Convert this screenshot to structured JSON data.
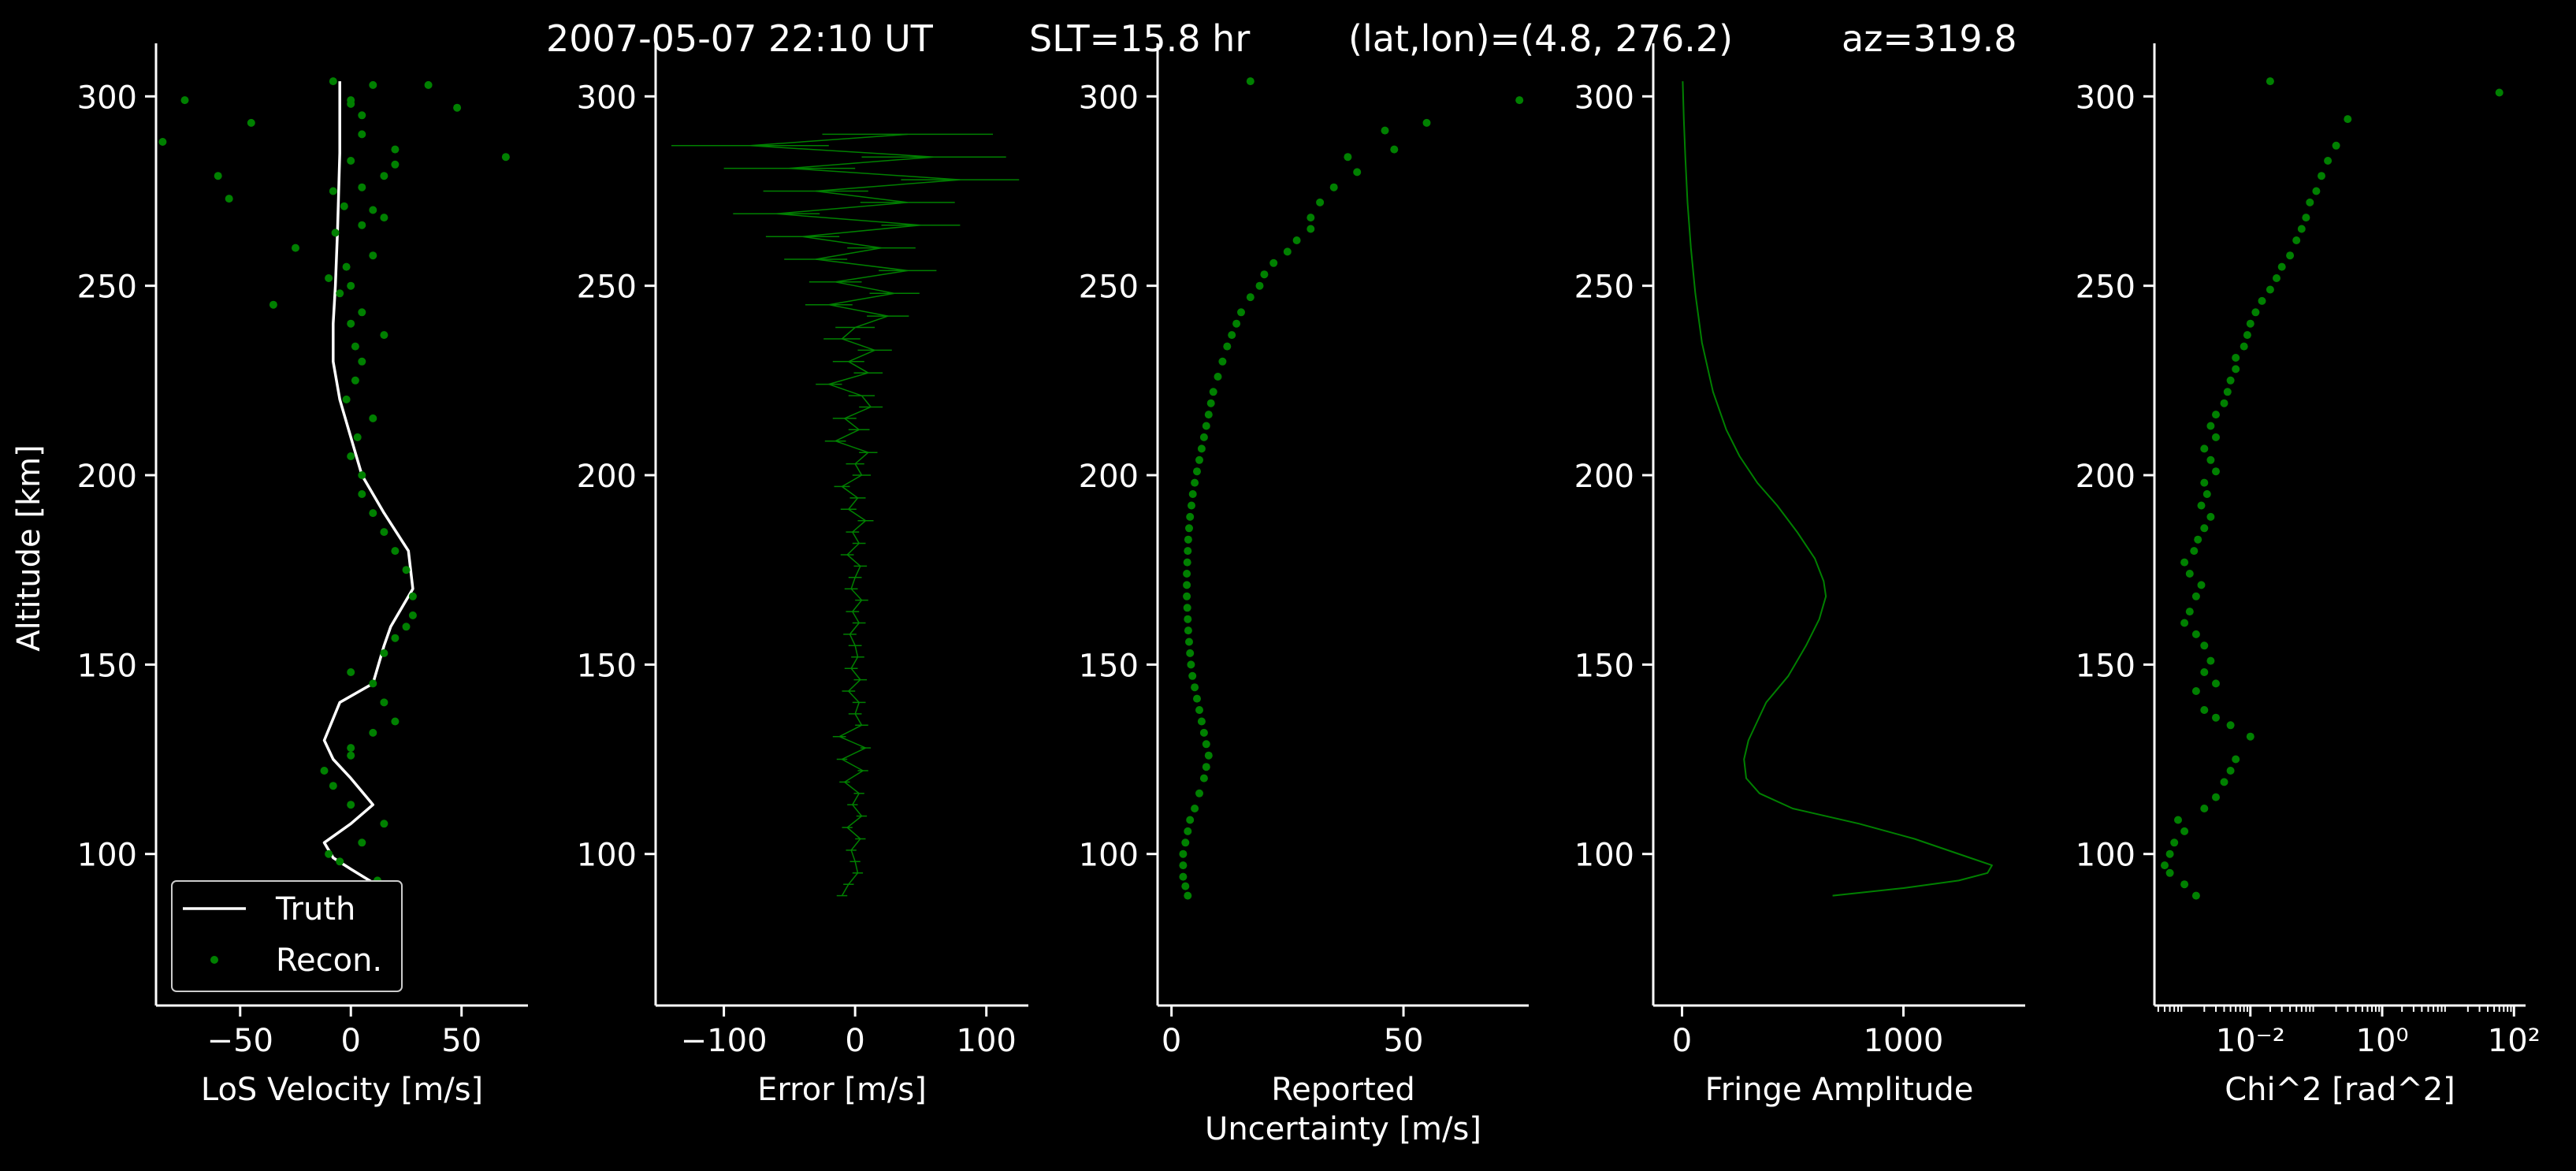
{
  "suptitle": {
    "date": "2007-05-07 22:10 UT",
    "slt": "SLT=15.8 hr",
    "latlon": "(lat,lon)=(4.8, 276.2)",
    "az": "az=319.8"
  },
  "colors": {
    "background": "#000000",
    "truth": "#ffffff",
    "recon": "#008000",
    "axis": "#ffffff"
  },
  "chart_data": [
    {
      "type": "line",
      "xlabel": "LoS Velocity [m/s]",
      "ylabel": "Altitude [km]",
      "xlim": [
        -88,
        80
      ],
      "ylim": [
        60,
        314
      ],
      "xticks": [
        -50,
        0,
        50
      ],
      "xtick_labels": [
        "−50",
        "0",
        "50"
      ],
      "yticks": [
        100,
        150,
        200,
        250,
        300
      ],
      "ytick_labels": [
        "100",
        "150",
        "200",
        "250",
        "300"
      ],
      "grid": false,
      "legend": {
        "placement": "lower-left",
        "entries": [
          "Truth",
          "Recon."
        ]
      },
      "series": [
        {
          "name": "Truth",
          "style": "line",
          "x": [
            14,
            0,
            -8,
            -12,
            0,
            10,
            0,
            -8,
            -12,
            -5,
            10,
            15,
            18,
            28,
            26,
            15,
            5,
            0,
            -5,
            -8,
            -8,
            -7,
            -6,
            -5,
            -5
          ],
          "y": [
            91,
            96,
            99,
            103,
            108,
            113,
            120,
            125,
            130,
            140,
            145,
            155,
            160,
            170,
            180,
            190,
            200,
            210,
            220,
            230,
            240,
            250,
            265,
            285,
            304
          ]
        },
        {
          "name": "Recon.",
          "style": "scatter",
          "x": [
            12,
            -5,
            -10,
            5,
            15,
            0,
            -8,
            -12,
            0,
            0,
            10,
            20,
            15,
            10,
            0,
            15,
            20,
            25,
            28,
            28,
            25,
            20,
            15,
            10,
            5,
            5,
            0,
            3,
            10,
            -2,
            2,
            5,
            2,
            15,
            0,
            5,
            -5,
            0,
            -10,
            -2,
            -35,
            10,
            -25,
            -7,
            5,
            15,
            10,
            -3,
            -8,
            -55,
            -60,
            5,
            20,
            15,
            0,
            20,
            5,
            -85,
            -45,
            -75,
            5,
            0,
            70,
            48,
            35,
            10,
            0,
            -8
          ],
          "y": [
            93,
            98,
            100,
            103,
            108,
            113,
            118,
            122,
            126,
            128,
            132,
            135,
            140,
            145,
            148,
            153,
            157,
            160,
            163,
            168,
            175,
            180,
            185,
            190,
            195,
            200,
            205,
            210,
            215,
            220,
            225,
            230,
            234,
            237,
            240,
            243,
            248,
            250,
            252,
            255,
            245,
            258,
            260,
            264,
            266,
            268,
            270,
            271,
            275,
            273,
            279,
            276,
            282,
            279,
            283,
            286,
            290,
            288,
            293,
            299,
            295,
            298,
            284,
            297,
            303,
            303,
            299,
            304
          ]
        }
      ]
    },
    {
      "type": "line",
      "xlabel": "Error [m/s]",
      "xlim": [
        -152,
        132
      ],
      "ylim": [
        60,
        314
      ],
      "xticks": [
        -100,
        0,
        100
      ],
      "xtick_labels": [
        "−100",
        "0",
        "100"
      ],
      "yticks": [
        100,
        150,
        200,
        250,
        300
      ],
      "ytick_labels": [
        "100",
        "150",
        "200",
        "250",
        "300"
      ],
      "grid": false,
      "series": [
        {
          "name": "",
          "style": "errorbar-line",
          "x": [
            -10,
            -5,
            2,
            0,
            -3,
            4,
            -6,
            5,
            -2,
            3,
            -8,
            6,
            -10,
            8,
            -12,
            5,
            0,
            3,
            -5,
            4,
            -3,
            2,
            0,
            -4,
            3,
            -2,
            5,
            -3,
            0,
            4,
            -6,
            3,
            -2,
            8,
            -5,
            2,
            -10,
            5,
            0,
            10,
            -15,
            3,
            -8,
            12,
            5,
            -20,
            10,
            -5,
            15,
            -10,
            0,
            25,
            -20,
            30,
            -15,
            40,
            -30,
            20,
            -40,
            50,
            -60,
            40,
            -30,
            80,
            -50,
            60,
            -80,
            40
          ],
          "y": [
            89,
            92,
            95,
            98,
            101,
            104,
            107,
            110,
            113,
            116,
            119,
            122,
            125,
            128,
            131,
            134,
            137,
            140,
            143,
            146,
            149,
            152,
            155,
            158,
            161,
            164,
            167,
            170,
            173,
            176,
            179,
            182,
            185,
            188,
            191,
            194,
            197,
            200,
            203,
            206,
            209,
            212,
            215,
            218,
            221,
            224,
            227,
            230,
            233,
            236,
            239,
            242,
            245,
            248,
            251,
            254,
            257,
            260,
            263,
            266,
            269,
            272,
            275,
            278,
            281,
            284,
            287,
            290
          ],
          "err": [
            4,
            4,
            4,
            4,
            4,
            4,
            4,
            4,
            4,
            4,
            4,
            4,
            4,
            4,
            5,
            5,
            5,
            5,
            5,
            5,
            5,
            5,
            5,
            5,
            5,
            5,
            5,
            5,
            5,
            5,
            5,
            5,
            5,
            6,
            6,
            6,
            6,
            7,
            7,
            7,
            8,
            8,
            9,
            9,
            10,
            10,
            11,
            12,
            13,
            14,
            15,
            16,
            18,
            19,
            20,
            22,
            24,
            26,
            28,
            30,
            33,
            36,
            40,
            45,
            50,
            55,
            60,
            65
          ]
        }
      ]
    },
    {
      "type": "scatter",
      "xlabel": "Reported\nUncertainty [m/s]",
      "xlim": [
        -3,
        77
      ],
      "ylim": [
        60,
        314
      ],
      "xticks": [
        0,
        50
      ],
      "xtick_labels": [
        "0",
        "50"
      ],
      "yticks": [
        100,
        150,
        200,
        250,
        300
      ],
      "ytick_labels": [
        "100",
        "150",
        "200",
        "250",
        "300"
      ],
      "grid": false,
      "series": [
        {
          "name": "",
          "style": "scatter",
          "x": [
            3.5,
            3,
            2.5,
            2.5,
            2.5,
            3,
            3.5,
            4,
            5,
            6,
            7,
            7.5,
            8,
            7.5,
            7,
            6.5,
            6,
            5.5,
            5,
            4.5,
            4.2,
            4,
            3.8,
            3.6,
            3.5,
            3.4,
            3.3,
            3.3,
            3.3,
            3.4,
            3.5,
            3.6,
            3.8,
            4,
            4.3,
            4.6,
            5,
            5.5,
            6,
            6.5,
            7,
            7.5,
            8,
            8.5,
            9,
            10,
            11,
            12,
            13,
            14,
            15,
            17,
            19,
            20,
            22,
            25,
            27,
            30,
            30,
            32,
            35,
            40,
            38,
            48,
            46,
            55,
            17,
            75
          ],
          "y": [
            89,
            91.5,
            94,
            97,
            100,
            103,
            106,
            109,
            112,
            116,
            120,
            123,
            126,
            129,
            132,
            135,
            138,
            141,
            144,
            147,
            150,
            153,
            156,
            159,
            162,
            165,
            168,
            171,
            174,
            177,
            180,
            183,
            186,
            189,
            192,
            195,
            198,
            201,
            204,
            207,
            210,
            213,
            216,
            219,
            222,
            226,
            230,
            234,
            237,
            240,
            243,
            247,
            250,
            253,
            256,
            259,
            262,
            265,
            268,
            272,
            276,
            280,
            284,
            286,
            291,
            293,
            304,
            299
          ]
        }
      ]
    },
    {
      "type": "line",
      "xlabel": "Fringe Amplitude",
      "xlim": [
        -130,
        1550
      ],
      "ylim": [
        60,
        314
      ],
      "xticks": [
        0,
        1000
      ],
      "xtick_labels": [
        "0",
        "1000"
      ],
      "yticks": [
        100,
        150,
        200,
        250,
        300
      ],
      "ytick_labels": [
        "100",
        "150",
        "200",
        "250",
        "300"
      ],
      "grid": false,
      "series": [
        {
          "name": "",
          "style": "line",
          "x": [
            680,
            1000,
            1250,
            1380,
            1400,
            1300,
            1050,
            800,
            500,
            350,
            290,
            280,
            300,
            340,
            380,
            480,
            560,
            620,
            650,
            640,
            600,
            520,
            430,
            340,
            260,
            200,
            140,
            90,
            60,
            40,
            25,
            15,
            8,
            3
          ],
          "y": [
            89,
            91,
            93,
            95,
            97,
            99,
            104,
            108,
            112,
            116,
            120,
            125,
            130,
            135,
            140,
            147,
            155,
            162,
            168,
            172,
            178,
            185,
            192,
            198,
            205,
            212,
            222,
            235,
            248,
            260,
            272,
            284,
            294,
            304
          ]
        }
      ]
    },
    {
      "type": "scatter",
      "xlabel": "Chi^2 [rad^2]",
      "xscale": "log",
      "xlim": [
        0.00035,
        150
      ],
      "ylim": [
        60,
        314
      ],
      "xticks": [
        0.01,
        1,
        100
      ],
      "xtick_labels": [
        "10⁻²",
        "10⁰",
        "10²"
      ],
      "yticks": [
        100,
        150,
        200,
        250,
        300
      ],
      "ytick_labels": [
        "100",
        "150",
        "200",
        "250",
        "300"
      ],
      "grid": false,
      "series": [
        {
          "name": "",
          "style": "scatter",
          "x": [
            0.0015,
            0.001,
            0.0006,
            0.0005,
            0.0006,
            0.0007,
            0.001,
            0.0008,
            0.002,
            0.003,
            0.004,
            0.005,
            0.006,
            0.01,
            0.005,
            0.003,
            0.002,
            0.0015,
            0.003,
            0.002,
            0.0025,
            0.002,
            0.0015,
            0.001,
            0.0012,
            0.0015,
            0.0018,
            0.0012,
            0.001,
            0.0014,
            0.0016,
            0.002,
            0.0025,
            0.0018,
            0.0022,
            0.002,
            0.003,
            0.0025,
            0.002,
            0.003,
            0.0025,
            0.003,
            0.004,
            0.0045,
            0.005,
            0.006,
            0.006,
            0.008,
            0.009,
            0.01,
            0.012,
            0.015,
            0.02,
            0.025,
            0.03,
            0.04,
            0.05,
            0.06,
            0.07,
            0.08,
            0.1,
            0.12,
            0.15,
            0.2,
            0.3,
            0.02,
            60
          ],
          "y": [
            89,
            92,
            95,
            97,
            100,
            103,
            106,
            109,
            112,
            115,
            119,
            122,
            125,
            131,
            134,
            136,
            138,
            143,
            145,
            148,
            151,
            155,
            158,
            161,
            164,
            168,
            171,
            174,
            177,
            180,
            183,
            186,
            189,
            192,
            195,
            198,
            201,
            204,
            207,
            210,
            213,
            216,
            219,
            222,
            225,
            228,
            231,
            234,
            237,
            240,
            243,
            246,
            249,
            252,
            255,
            258,
            262,
            265,
            268,
            272,
            275,
            279,
            283,
            287,
            294,
            304,
            301
          ]
        }
      ]
    }
  ]
}
